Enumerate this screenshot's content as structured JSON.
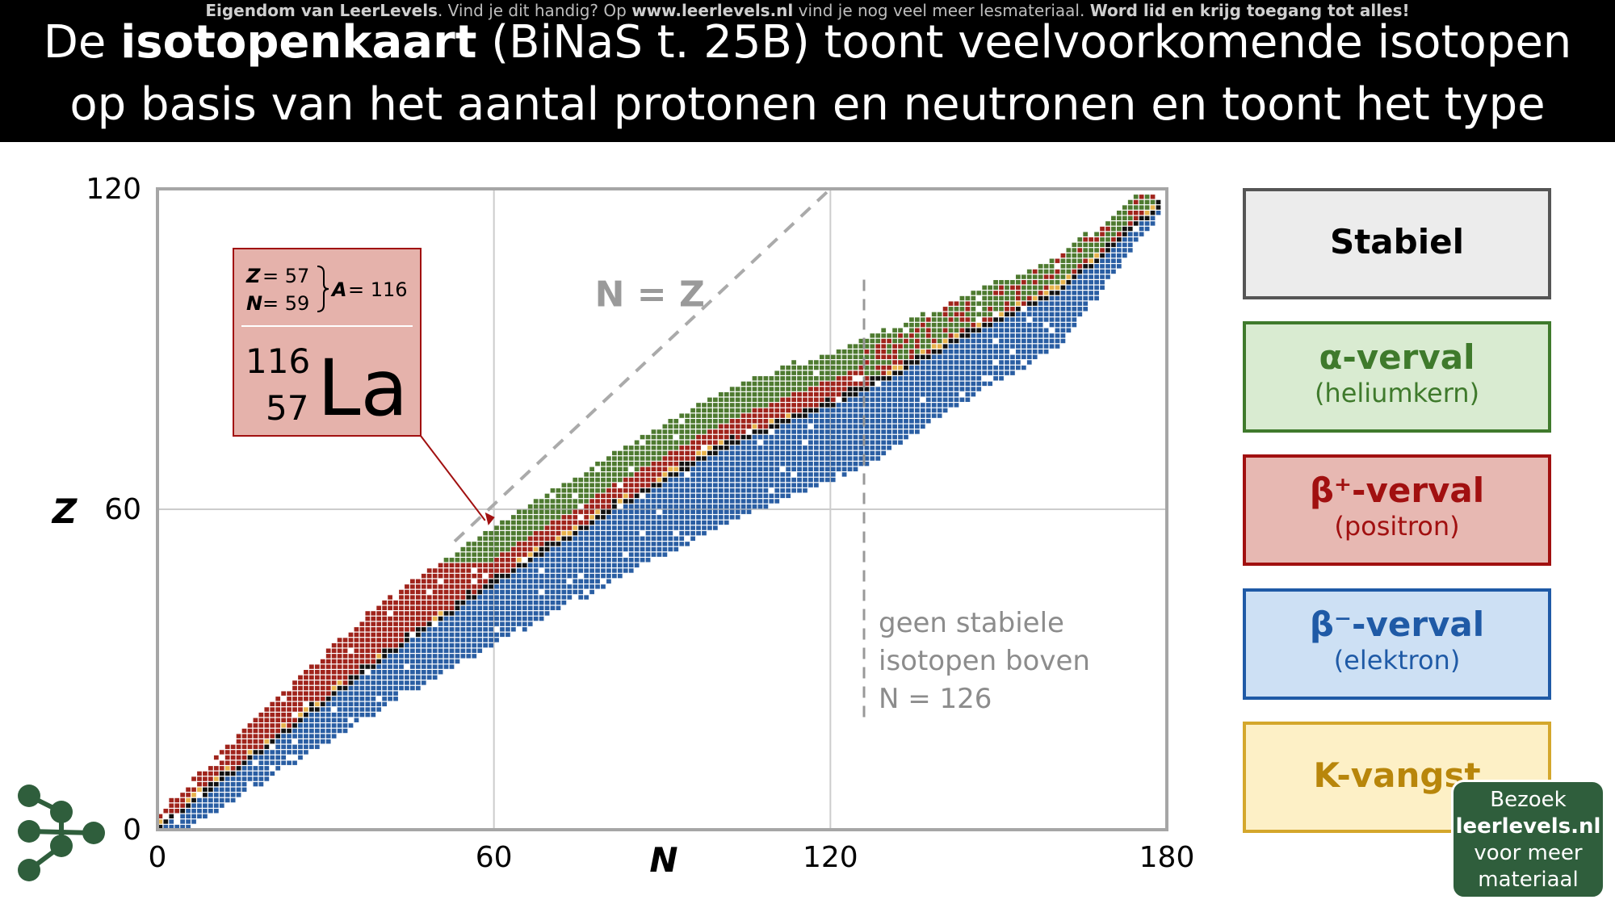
{
  "header": {
    "watermark": {
      "part1": "Eigendom van LeerLevels",
      "part2": ". Vind je dit handig? Op ",
      "part3": "www.leerlevels.nl",
      "part4": " vind je nog veel meer lesmateriaal. ",
      "part5": "Word lid en krijg toegang tot alles!"
    },
    "title_pre": "De ",
    "title_bold": "isotopenkaart",
    "title_post": " (BiNaS t. 25B) toont veelvoorkomende isotopen op basis van het aantal protonen en neutronen en toont het type verval"
  },
  "chart_data": {
    "type": "heatmap",
    "xlabel": "N",
    "ylabel": "Z",
    "xlim": [
      0,
      180
    ],
    "ylim": [
      0,
      120
    ],
    "xticks": [
      "0",
      "60",
      "120",
      "180"
    ],
    "yticks": [
      "0",
      "60",
      "120"
    ],
    "grid": true,
    "reference_line_label": "N = Z",
    "n126_note": [
      "geen stabiele",
      "isotopen boven",
      "N = 126"
    ],
    "vertical_line_x": 126,
    "bands": {
      "stable": {
        "offset": [
          [
            0,
            0
          ],
          [
            20,
            4
          ],
          [
            40,
            8
          ],
          [
            60,
            14
          ],
          [
            80,
            21
          ],
          [
            100,
            29
          ],
          [
            126,
            44
          ],
          [
            140,
            50
          ],
          [
            160,
            60
          ],
          [
            180,
            62
          ]
        ]
      },
      "beta_plus": {
        "width": [
          [
            0,
            2
          ],
          [
            20,
            7
          ],
          [
            40,
            10
          ],
          [
            60,
            10
          ],
          [
            80,
            10
          ],
          [
            100,
            10
          ],
          [
            126,
            9
          ],
          [
            140,
            7
          ],
          [
            160,
            6
          ],
          [
            180,
            4
          ]
        ]
      },
      "beta_min": {
        "width": [
          [
            0,
            3
          ],
          [
            20,
            6
          ],
          [
            40,
            9
          ],
          [
            60,
            11
          ],
          [
            80,
            13
          ],
          [
            100,
            14
          ],
          [
            126,
            14
          ],
          [
            140,
            12
          ],
          [
            160,
            10
          ],
          [
            180,
            0
          ]
        ]
      },
      "alpha": {
        "start_z": 50
      }
    },
    "callout": {
      "z_label": "Z",
      "z_value": "57",
      "n_label": "N",
      "n_value": "59",
      "a_label": "A",
      "a_value": "116",
      "mass": "116",
      "atomic": "57",
      "symbol": "La",
      "target_n": 59,
      "target_z": 57
    }
  },
  "legend": [
    {
      "main": "Stabiel",
      "sub": "",
      "color": "#000000",
      "fill": "#ececec",
      "border": "#555555"
    },
    {
      "main": "α-verval",
      "sub": "(heliumkern)",
      "color": "#3f7a2c",
      "fill": "#d9ebd1",
      "border": "#3f7a2c"
    },
    {
      "main": "β⁺-verval",
      "sub": "(positron)",
      "color": "#a11010",
      "fill": "#e7b8b2",
      "border": "#a11010"
    },
    {
      "main": "β⁻-verval",
      "sub": "(elektron)",
      "color": "#1f5aa6",
      "fill": "#cde0f4",
      "border": "#1f5aa6"
    },
    {
      "main": "K-vangst",
      "sub": "",
      "color": "#b8860b",
      "fill": "#fdf0c6",
      "border": "#d4a72c"
    }
  ],
  "colors": {
    "stable": "#111111",
    "alpha": "#4e7a30",
    "beta_plus": "#a0241c",
    "beta_min": "#2a5ea3",
    "k_capture": "#e6b24c",
    "grid": "#cccccc",
    "reference_line": "#aaaaaa"
  },
  "cta": {
    "line1": "Bezoek",
    "line2": "leerlevels.nl",
    "line3": "voor meer",
    "line4": "materiaal"
  }
}
